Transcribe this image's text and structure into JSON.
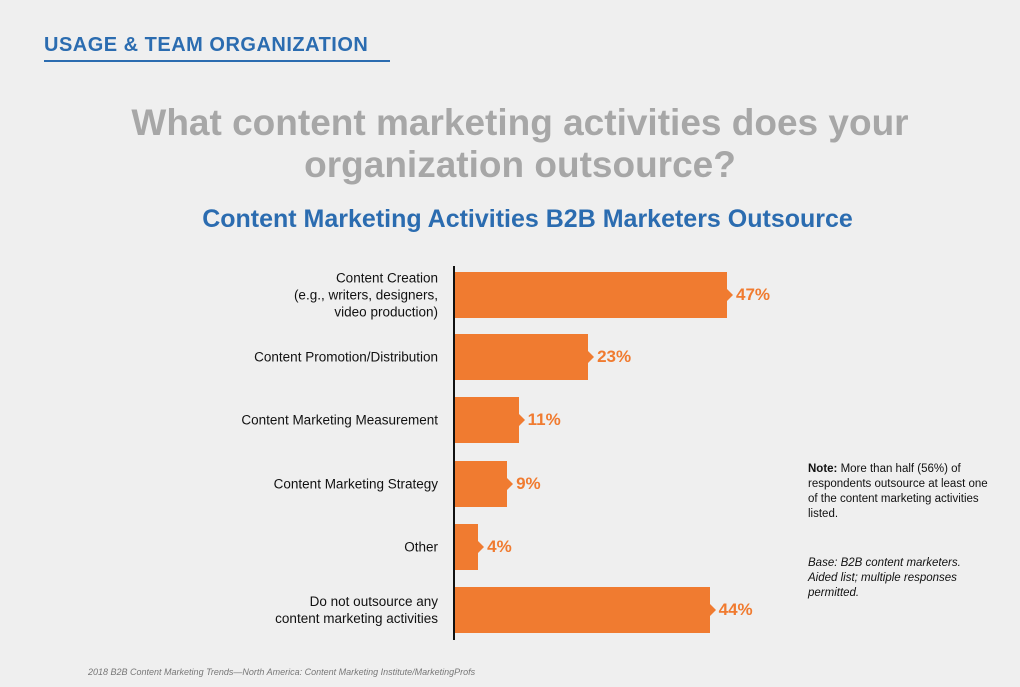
{
  "header": {
    "section_label": "USAGE & TEAM ORGANIZATION",
    "question": "What content marketing activities does your organization outsource?"
  },
  "chart_data": {
    "type": "bar",
    "orientation": "horizontal",
    "title": "Content Marketing Activities B2B Marketers Outsource",
    "categories": [
      "Content Creation\n(e.g., writers, designers,\nvideo production)",
      "Content Promotion/Distribution",
      "Content Marketing Measurement",
      "Content Marketing Strategy",
      "Other",
      "Do not outsource any\ncontent marketing activities"
    ],
    "values": [
      47,
      23,
      11,
      9,
      4,
      44
    ],
    "value_labels": [
      "47%",
      "23%",
      "11%",
      "9%",
      "4%",
      "44%"
    ],
    "xlim": [
      0,
      100
    ],
    "unit": "%",
    "bar_color": "#f07b30",
    "xlabel": "",
    "ylabel": ""
  },
  "note": {
    "label": "Note:",
    "text": " More than half (56%) of respondents outsource at least one of the content marketing activities listed."
  },
  "base_text": "Base: B2B content marketers. Aided list; multiple responses permitted.",
  "footer": "2018 B2B Content Marketing Trends—North America: Content Marketing Institute/MarketingProfs",
  "colors": {
    "accent_blue": "#2b6cb0",
    "bar_orange": "#f07b30",
    "question_gray": "#a7a7a7"
  }
}
